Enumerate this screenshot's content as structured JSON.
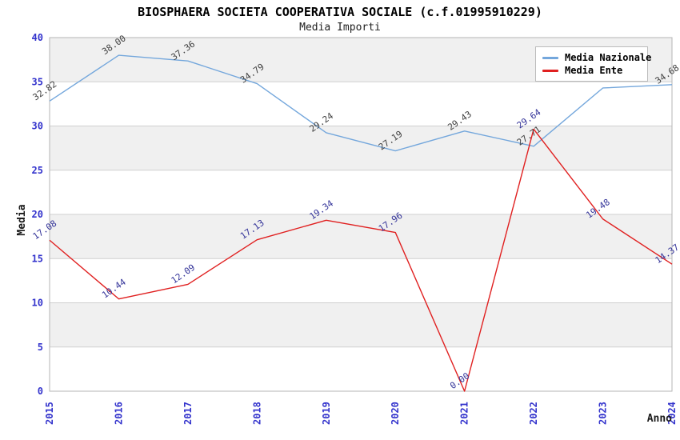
{
  "chart_data": {
    "type": "line",
    "title": "BIOSPHAERA SOCIETA COOPERATIVA SOCIALE (c.f.01995910229)",
    "subtitle": "Media Importi",
    "xlabel": "Anno",
    "ylabel": "Media",
    "x": [
      "2015",
      "2016",
      "2017",
      "2018",
      "2019",
      "2020",
      "2021",
      "2022",
      "2023",
      "2024"
    ],
    "ylim": [
      0,
      40
    ],
    "yticks": [
      0,
      5,
      10,
      15,
      20,
      25,
      30,
      35,
      40
    ],
    "grid": "horizontal gridlines every 5 with alternating gray/white bands",
    "legend_position": "top-right",
    "colors": {
      "tick_label": "#3333cc",
      "band_fill": "#f0f0f0",
      "gridline": "#cfcfcf",
      "plot_border": "#b5b5b5",
      "title_text": "#000000"
    },
    "series": [
      {
        "name": "Media Nazionale",
        "color": "#74a7dc",
        "label_color": "#404040",
        "values": [
          32.82,
          38.0,
          37.36,
          34.79,
          29.24,
          27.19,
          29.43,
          27.71,
          34.3,
          34.68
        ],
        "labels": [
          "32.82",
          "38.00",
          "37.36",
          "34.79",
          "29.24",
          "27.19",
          "29.43",
          "27.71",
          "",
          "34.68"
        ],
        "note": "2023 label hidden behind legend"
      },
      {
        "name": "Media Ente",
        "color": "#e02020",
        "label_color": "#333399",
        "values": [
          17.08,
          10.44,
          12.09,
          17.13,
          19.34,
          17.96,
          0.0,
          29.64,
          19.48,
          14.37
        ],
        "labels": [
          "17.08",
          "10.44",
          "12.09",
          "17.13",
          "19.34",
          "17.96",
          "0.00",
          "29.64",
          "19.48",
          "14.37"
        ]
      }
    ]
  }
}
